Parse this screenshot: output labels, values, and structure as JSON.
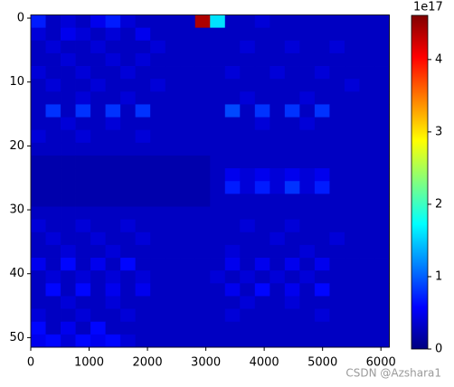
{
  "chart_data": {
    "type": "heatmap",
    "xlim": [
      0,
      6144
    ],
    "ylim": [
      51.5,
      -0.5
    ],
    "xticks": [
      0,
      1000,
      2000,
      3000,
      4000,
      5000,
      6000
    ],
    "yticks": [
      0,
      10,
      20,
      30,
      40,
      50
    ],
    "zlim": [
      0,
      4.61
    ],
    "zticks": [
      0,
      1,
      2,
      3,
      4
    ],
    "z_offset_label": "1e17",
    "colormap": "jet",
    "watermark": "CSDN @Azshara1",
    "z": [
      [
        0.7,
        0.3,
        0.4,
        0.3,
        0.5,
        0.7,
        0.4,
        0.3,
        0.3,
        0.3,
        0.3,
        4.4,
        1.6,
        0.3,
        0.3,
        0.4,
        0.3,
        0.3,
        0.3,
        0.3,
        0.3,
        0.3,
        0.3,
        0.3
      ],
      [
        0.4,
        0.3,
        0.5,
        0.4,
        0.3,
        0.4,
        0.3,
        0.5,
        0.3,
        0.3,
        0.3,
        0.3,
        0.3,
        0.3,
        0.3,
        0.3,
        0.3,
        0.3,
        0.3,
        0.3,
        0.3,
        0.3,
        0.3,
        0.3
      ],
      [
        0.3,
        0.4,
        0.3,
        0.3,
        0.4,
        0.3,
        0.3,
        0.3,
        0.4,
        0.3,
        0.3,
        0.3,
        0.3,
        0.3,
        0.4,
        0.3,
        0.3,
        0.4,
        0.3,
        0.3,
        0.4,
        0.3,
        0.3,
        0.3
      ],
      [
        0.3,
        0.3,
        0.4,
        0.3,
        0.3,
        0.4,
        0.3,
        0.4,
        0.3,
        0.3,
        0.3,
        0.3,
        0.3,
        0.3,
        0.3,
        0.3,
        0.3,
        0.3,
        0.3,
        0.3,
        0.3,
        0.3,
        0.3,
        0.3
      ],
      [
        0.4,
        0.3,
        0.3,
        0.4,
        0.3,
        0.3,
        0.4,
        0.3,
        0.3,
        0.3,
        0.3,
        0.3,
        0.3,
        0.4,
        0.3,
        0.3,
        0.4,
        0.3,
        0.3,
        0.4,
        0.3,
        0.3,
        0.3,
        0.3
      ],
      [
        0.3,
        0.4,
        0.3,
        0.3,
        0.4,
        0.3,
        0.3,
        0.3,
        0.4,
        0.3,
        0.3,
        0.3,
        0.3,
        0.3,
        0.3,
        0.3,
        0.3,
        0.3,
        0.3,
        0.3,
        0.3,
        0.4,
        0.3,
        0.3
      ],
      [
        0.3,
        0.3,
        0.3,
        0.4,
        0.3,
        0.3,
        0.4,
        0.3,
        0.3,
        0.3,
        0.3,
        0.3,
        0.3,
        0.3,
        0.4,
        0.3,
        0.3,
        0.3,
        0.4,
        0.3,
        0.3,
        0.3,
        0.3,
        0.3
      ],
      [
        0.3,
        0.8,
        0.3,
        0.8,
        0.3,
        0.8,
        0.3,
        0.8,
        0.3,
        0.3,
        0.3,
        0.3,
        0.3,
        0.9,
        0.3,
        0.8,
        0.3,
        0.8,
        0.3,
        0.8,
        0.3,
        0.3,
        0.3,
        0.3
      ],
      [
        0.3,
        0.3,
        0.4,
        0.3,
        0.3,
        0.4,
        0.3,
        0.3,
        0.3,
        0.3,
        0.3,
        0.3,
        0.3,
        0.3,
        0.3,
        0.4,
        0.3,
        0.3,
        0.4,
        0.3,
        0.3,
        0.3,
        0.3,
        0.3
      ],
      [
        0.4,
        0.3,
        0.3,
        0.4,
        0.3,
        0.3,
        0.3,
        0.4,
        0.3,
        0.3,
        0.3,
        0.3,
        0.3,
        0.3,
        0.3,
        0.3,
        0.3,
        0.3,
        0.3,
        0.3,
        0.3,
        0.3,
        0.3,
        0.3
      ],
      [
        0.3,
        0.3,
        0.3,
        0.3,
        0.3,
        0.3,
        0.3,
        0.3,
        0.3,
        0.3,
        0.3,
        0.3,
        0.3,
        0.3,
        0.3,
        0.3,
        0.3,
        0.3,
        0.3,
        0.3,
        0.3,
        0.3,
        0.3,
        0.3
      ],
      [
        0.2,
        0.2,
        0.2,
        0.2,
        0.2,
        0.2,
        0.2,
        0.2,
        0.2,
        0.2,
        0.2,
        0.2,
        0.3,
        0.3,
        0.3,
        0.3,
        0.3,
        0.3,
        0.3,
        0.3,
        0.3,
        0.3,
        0.3,
        0.3
      ],
      [
        0.2,
        0.2,
        0.2,
        0.2,
        0.2,
        0.2,
        0.2,
        0.2,
        0.2,
        0.2,
        0.2,
        0.2,
        0.3,
        0.5,
        0.4,
        0.5,
        0.4,
        0.5,
        0.4,
        0.5,
        0.3,
        0.3,
        0.3,
        0.3
      ],
      [
        0.2,
        0.2,
        0.2,
        0.2,
        0.2,
        0.2,
        0.2,
        0.2,
        0.2,
        0.2,
        0.2,
        0.2,
        0.3,
        0.7,
        0.4,
        0.7,
        0.4,
        0.8,
        0.4,
        0.7,
        0.3,
        0.3,
        0.3,
        0.3
      ],
      [
        0.2,
        0.2,
        0.2,
        0.2,
        0.2,
        0.2,
        0.2,
        0.2,
        0.2,
        0.2,
        0.2,
        0.2,
        0.3,
        0.3,
        0.3,
        0.3,
        0.3,
        0.3,
        0.3,
        0.3,
        0.3,
        0.3,
        0.3,
        0.3
      ],
      [
        0.3,
        0.3,
        0.3,
        0.3,
        0.3,
        0.3,
        0.3,
        0.3,
        0.3,
        0.3,
        0.3,
        0.3,
        0.3,
        0.3,
        0.3,
        0.3,
        0.3,
        0.3,
        0.3,
        0.3,
        0.3,
        0.3,
        0.3,
        0.3
      ],
      [
        0.4,
        0.3,
        0.3,
        0.4,
        0.3,
        0.3,
        0.4,
        0.3,
        0.3,
        0.3,
        0.3,
        0.3,
        0.3,
        0.3,
        0.4,
        0.3,
        0.3,
        0.4,
        0.3,
        0.3,
        0.3,
        0.3,
        0.3,
        0.3
      ],
      [
        0.3,
        0.4,
        0.3,
        0.3,
        0.4,
        0.3,
        0.3,
        0.4,
        0.3,
        0.3,
        0.3,
        0.3,
        0.3,
        0.3,
        0.3,
        0.3,
        0.4,
        0.3,
        0.3,
        0.3,
        0.4,
        0.3,
        0.3,
        0.3
      ],
      [
        0.3,
        0.3,
        0.4,
        0.3,
        0.3,
        0.4,
        0.3,
        0.3,
        0.3,
        0.3,
        0.3,
        0.3,
        0.3,
        0.4,
        0.3,
        0.3,
        0.3,
        0.3,
        0.4,
        0.3,
        0.3,
        0.3,
        0.3,
        0.3
      ],
      [
        0.5,
        0.3,
        0.6,
        0.3,
        0.5,
        0.3,
        0.6,
        0.3,
        0.3,
        0.3,
        0.3,
        0.3,
        0.3,
        0.5,
        0.3,
        0.5,
        0.3,
        0.5,
        0.3,
        0.5,
        0.3,
        0.3,
        0.3,
        0.3
      ],
      [
        0.3,
        0.4,
        0.3,
        0.4,
        0.3,
        0.4,
        0.3,
        0.4,
        0.3,
        0.3,
        0.3,
        0.3,
        0.4,
        0.3,
        0.4,
        0.3,
        0.4,
        0.3,
        0.4,
        0.3,
        0.3,
        0.3,
        0.3,
        0.3
      ],
      [
        0.3,
        0.6,
        0.3,
        0.6,
        0.3,
        0.5,
        0.3,
        0.5,
        0.3,
        0.3,
        0.3,
        0.3,
        0.3,
        0.5,
        0.3,
        0.6,
        0.3,
        0.5,
        0.3,
        0.6,
        0.3,
        0.3,
        0.3,
        0.3
      ],
      [
        0.3,
        0.3,
        0.4,
        0.3,
        0.3,
        0.4,
        0.3,
        0.3,
        0.3,
        0.3,
        0.3,
        0.3,
        0.3,
        0.3,
        0.4,
        0.3,
        0.3,
        0.4,
        0.3,
        0.3,
        0.3,
        0.3,
        0.3,
        0.3
      ],
      [
        0.4,
        0.3,
        0.3,
        0.4,
        0.3,
        0.3,
        0.4,
        0.3,
        0.3,
        0.3,
        0.3,
        0.3,
        0.3,
        0.4,
        0.3,
        0.3,
        0.3,
        0.3,
        0.3,
        0.4,
        0.3,
        0.3,
        0.3,
        0.3
      ],
      [
        0.6,
        0.3,
        0.5,
        0.3,
        0.6,
        0.3,
        0.3,
        0.3,
        0.3,
        0.3,
        0.3,
        0.3,
        0.3,
        0.3,
        0.3,
        0.3,
        0.3,
        0.3,
        0.3,
        0.3,
        0.3,
        0.3,
        0.3,
        0.3
      ],
      [
        0.5,
        0.6,
        0.4,
        0.6,
        0.5,
        0.6,
        0.4,
        0.3,
        0.3,
        0.3,
        0.3,
        0.3,
        0.3,
        0.3,
        0.3,
        0.3,
        0.3,
        0.3,
        0.3,
        0.3,
        0.3,
        0.3,
        0.3,
        0.3
      ]
    ]
  }
}
